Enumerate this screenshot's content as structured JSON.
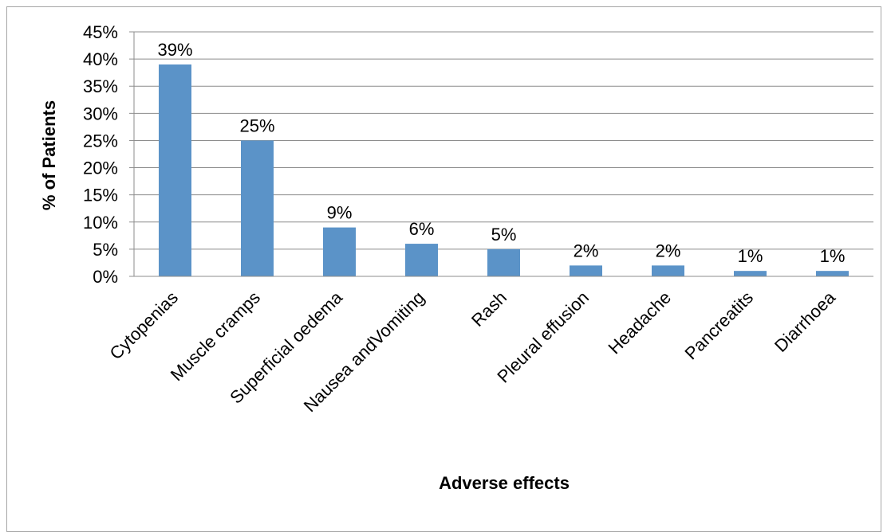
{
  "chart_data": {
    "type": "bar",
    "categories": [
      "Cytopenias",
      "Muscle cramps",
      "Superficial oedema",
      "Nausea andVomiting",
      "Rash",
      "Pleural effusion",
      "Headache",
      "Pancreatits",
      "Diarrhoea"
    ],
    "values": [
      39,
      25,
      9,
      6,
      5,
      2,
      2,
      1,
      1
    ],
    "data_labels": [
      "39%",
      "25%",
      "9%",
      "6%",
      "5%",
      "2%",
      "2%",
      "1%",
      "1%"
    ],
    "xlabel": "Adverse effects",
    "ylabel": "% of Patients",
    "ylim": [
      0,
      45
    ],
    "yticks": [
      0,
      5,
      10,
      15,
      20,
      25,
      30,
      35,
      40,
      45
    ],
    "ytick_labels": [
      "0%",
      "5%",
      "10%",
      "15%",
      "20%",
      "25%",
      "30%",
      "35%",
      "40%",
      "45%"
    ],
    "grid": true,
    "legend": "none",
    "colors": {
      "bar": "#5b93c8",
      "grid": "#8c8c8c",
      "axis": "#8c8c8c"
    }
  }
}
